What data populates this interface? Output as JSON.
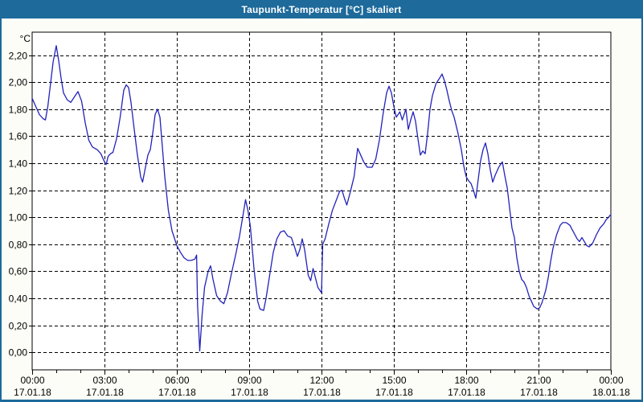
{
  "title": "Taupunkt-Temperatur [°C] skaliert",
  "colors": {
    "titlebar_bg": "#1d6a9b",
    "titlebar_text": "#ffffff",
    "window_bg": "#fdfdf7",
    "plot_bg": "#ffffff",
    "grid": "#000000",
    "axis_text": "#000000",
    "series_line": "#2222bb"
  },
  "chart_data": {
    "type": "line",
    "title": "Taupunkt-Temperatur [°C] skaliert",
    "xlabel": "",
    "ylabel": "",
    "y_unit_label": "°C",
    "grid": "dashed",
    "legend": "none",
    "ylim": [
      -0.13,
      2.37
    ],
    "xlim_hours": [
      0,
      24
    ],
    "x_minor_tick_every_hours": 1,
    "y_ticks": [
      {
        "value": 0.0,
        "label": "0,00"
      },
      {
        "value": 0.2,
        "label": "0,20"
      },
      {
        "value": 0.4,
        "label": "0,40"
      },
      {
        "value": 0.6,
        "label": "0,60"
      },
      {
        "value": 0.8,
        "label": "0,80"
      },
      {
        "value": 1.0,
        "label": "1,00"
      },
      {
        "value": 1.2,
        "label": "1,20"
      },
      {
        "value": 1.4,
        "label": "1,40"
      },
      {
        "value": 1.6,
        "label": "1,60"
      },
      {
        "value": 1.8,
        "label": "1,80"
      },
      {
        "value": 2.0,
        "label": "2,00"
      },
      {
        "value": 2.2,
        "label": "2,20"
      }
    ],
    "x_ticks": [
      {
        "hour": 0,
        "time": "00:00",
        "date": "17.01.18"
      },
      {
        "hour": 3,
        "time": "03:00",
        "date": "17.01.18"
      },
      {
        "hour": 6,
        "time": "06:00",
        "date": "17.01.18"
      },
      {
        "hour": 9,
        "time": "09:00",
        "date": "17.01.18"
      },
      {
        "hour": 12,
        "time": "12:00",
        "date": "17.01.18"
      },
      {
        "hour": 15,
        "time": "15:00",
        "date": "17.01.18"
      },
      {
        "hour": 18,
        "time": "18:00",
        "date": "17.01.18"
      },
      {
        "hour": 21,
        "time": "21:00",
        "date": "17.01.18"
      },
      {
        "hour": 24,
        "time": "00:00",
        "date": "18.01.18"
      }
    ],
    "series": [
      {
        "name": "Taupunkt-Temperatur skaliert",
        "color": "#2222bb",
        "points_hour_value": [
          [
            0.0,
            1.88
          ],
          [
            0.15,
            1.82
          ],
          [
            0.3,
            1.76
          ],
          [
            0.45,
            1.73
          ],
          [
            0.55,
            1.72
          ],
          [
            0.65,
            1.82
          ],
          [
            0.75,
            1.97
          ],
          [
            0.87,
            2.15
          ],
          [
            1.0,
            2.27
          ],
          [
            1.1,
            2.16
          ],
          [
            1.2,
            2.03
          ],
          [
            1.3,
            1.92
          ],
          [
            1.45,
            1.87
          ],
          [
            1.6,
            1.85
          ],
          [
            1.75,
            1.89
          ],
          [
            1.9,
            1.93
          ],
          [
            2.05,
            1.86
          ],
          [
            2.2,
            1.7
          ],
          [
            2.35,
            1.57
          ],
          [
            2.5,
            1.52
          ],
          [
            2.7,
            1.5
          ],
          [
            2.85,
            1.47
          ],
          [
            3.0,
            1.41
          ],
          [
            3.07,
            1.39
          ],
          [
            3.15,
            1.45
          ],
          [
            3.25,
            1.47
          ],
          [
            3.35,
            1.48
          ],
          [
            3.5,
            1.58
          ],
          [
            3.65,
            1.74
          ],
          [
            3.8,
            1.94
          ],
          [
            3.9,
            1.98
          ],
          [
            4.0,
            1.96
          ],
          [
            4.1,
            1.85
          ],
          [
            4.2,
            1.7
          ],
          [
            4.35,
            1.48
          ],
          [
            4.5,
            1.3
          ],
          [
            4.58,
            1.26
          ],
          [
            4.7,
            1.37
          ],
          [
            4.8,
            1.46
          ],
          [
            4.9,
            1.5
          ],
          [
            5.0,
            1.62
          ],
          [
            5.1,
            1.76
          ],
          [
            5.2,
            1.8
          ],
          [
            5.3,
            1.74
          ],
          [
            5.4,
            1.52
          ],
          [
            5.5,
            1.3
          ],
          [
            5.65,
            1.05
          ],
          [
            5.8,
            0.9
          ],
          [
            6.0,
            0.79
          ],
          [
            6.15,
            0.74
          ],
          [
            6.3,
            0.7
          ],
          [
            6.45,
            0.68
          ],
          [
            6.6,
            0.68
          ],
          [
            6.75,
            0.69
          ],
          [
            6.82,
            0.72
          ],
          [
            6.86,
            0.35
          ],
          [
            6.95,
            0.01
          ],
          [
            7.05,
            0.28
          ],
          [
            7.15,
            0.48
          ],
          [
            7.3,
            0.6
          ],
          [
            7.4,
            0.64
          ],
          [
            7.5,
            0.54
          ],
          [
            7.65,
            0.42
          ],
          [
            7.8,
            0.38
          ],
          [
            7.95,
            0.36
          ],
          [
            8.1,
            0.44
          ],
          [
            8.25,
            0.57
          ],
          [
            8.45,
            0.73
          ],
          [
            8.6,
            0.86
          ],
          [
            8.75,
            1.02
          ],
          [
            8.85,
            1.13
          ],
          [
            8.95,
            1.05
          ],
          [
            9.05,
            0.93
          ],
          [
            9.2,
            0.62
          ],
          [
            9.35,
            0.38
          ],
          [
            9.45,
            0.32
          ],
          [
            9.6,
            0.31
          ],
          [
            9.7,
            0.4
          ],
          [
            9.85,
            0.57
          ],
          [
            10.0,
            0.74
          ],
          [
            10.15,
            0.84
          ],
          [
            10.3,
            0.89
          ],
          [
            10.45,
            0.9
          ],
          [
            10.6,
            0.86
          ],
          [
            10.75,
            0.85
          ],
          [
            10.9,
            0.77
          ],
          [
            11.0,
            0.71
          ],
          [
            11.1,
            0.76
          ],
          [
            11.2,
            0.84
          ],
          [
            11.3,
            0.76
          ],
          [
            11.45,
            0.57
          ],
          [
            11.55,
            0.53
          ],
          [
            11.65,
            0.62
          ],
          [
            11.75,
            0.55
          ],
          [
            11.85,
            0.48
          ],
          [
            12.0,
            0.44
          ],
          [
            12.05,
            0.8
          ],
          [
            12.15,
            0.84
          ],
          [
            12.3,
            0.95
          ],
          [
            12.45,
            1.05
          ],
          [
            12.6,
            1.12
          ],
          [
            12.75,
            1.19
          ],
          [
            12.85,
            1.2
          ],
          [
            12.95,
            1.14
          ],
          [
            13.05,
            1.09
          ],
          [
            13.2,
            1.19
          ],
          [
            13.35,
            1.3
          ],
          [
            13.5,
            1.51
          ],
          [
            13.6,
            1.47
          ],
          [
            13.75,
            1.41
          ],
          [
            13.9,
            1.37
          ],
          [
            14.1,
            1.37
          ],
          [
            14.25,
            1.43
          ],
          [
            14.4,
            1.57
          ],
          [
            14.55,
            1.76
          ],
          [
            14.7,
            1.92
          ],
          [
            14.8,
            1.97
          ],
          [
            14.9,
            1.92
          ],
          [
            15.0,
            1.82
          ],
          [
            15.1,
            1.74
          ],
          [
            15.25,
            1.78
          ],
          [
            15.35,
            1.72
          ],
          [
            15.5,
            1.8
          ],
          [
            15.6,
            1.65
          ],
          [
            15.7,
            1.72
          ],
          [
            15.8,
            1.78
          ],
          [
            15.9,
            1.71
          ],
          [
            16.0,
            1.58
          ],
          [
            16.1,
            1.46
          ],
          [
            16.2,
            1.49
          ],
          [
            16.3,
            1.47
          ],
          [
            16.4,
            1.62
          ],
          [
            16.5,
            1.8
          ],
          [
            16.6,
            1.9
          ],
          [
            16.75,
            1.99
          ],
          [
            16.9,
            2.03
          ],
          [
            17.0,
            2.06
          ],
          [
            17.1,
            2.01
          ],
          [
            17.2,
            1.94
          ],
          [
            17.3,
            1.86
          ],
          [
            17.4,
            1.79
          ],
          [
            17.5,
            1.74
          ],
          [
            17.65,
            1.63
          ],
          [
            17.8,
            1.5
          ],
          [
            17.9,
            1.38
          ],
          [
            18.0,
            1.3
          ],
          [
            18.1,
            1.27
          ],
          [
            18.2,
            1.25
          ],
          [
            18.3,
            1.2
          ],
          [
            18.4,
            1.14
          ],
          [
            18.5,
            1.28
          ],
          [
            18.6,
            1.42
          ],
          [
            18.7,
            1.5
          ],
          [
            18.8,
            1.55
          ],
          [
            18.9,
            1.47
          ],
          [
            19.0,
            1.35
          ],
          [
            19.1,
            1.26
          ],
          [
            19.2,
            1.31
          ],
          [
            19.35,
            1.37
          ],
          [
            19.5,
            1.41
          ],
          [
            19.6,
            1.31
          ],
          [
            19.7,
            1.22
          ],
          [
            19.8,
            1.07
          ],
          [
            19.9,
            0.92
          ],
          [
            20.0,
            0.85
          ],
          [
            20.1,
            0.7
          ],
          [
            20.2,
            0.6
          ],
          [
            20.3,
            0.54
          ],
          [
            20.4,
            0.52
          ],
          [
            20.5,
            0.48
          ],
          [
            20.6,
            0.42
          ],
          [
            20.7,
            0.38
          ],
          [
            20.8,
            0.34
          ],
          [
            20.95,
            0.32
          ],
          [
            21.05,
            0.33
          ],
          [
            21.15,
            0.37
          ],
          [
            21.3,
            0.46
          ],
          [
            21.4,
            0.55
          ],
          [
            21.5,
            0.67
          ],
          [
            21.6,
            0.77
          ],
          [
            21.75,
            0.87
          ],
          [
            21.9,
            0.94
          ],
          [
            22.0,
            0.96
          ],
          [
            22.15,
            0.96
          ],
          [
            22.3,
            0.94
          ],
          [
            22.45,
            0.89
          ],
          [
            22.6,
            0.84
          ],
          [
            22.7,
            0.82
          ],
          [
            22.8,
            0.85
          ],
          [
            22.9,
            0.82
          ],
          [
            23.0,
            0.79
          ],
          [
            23.1,
            0.78
          ],
          [
            23.25,
            0.81
          ],
          [
            23.4,
            0.87
          ],
          [
            23.55,
            0.92
          ],
          [
            23.7,
            0.95
          ],
          [
            23.8,
            0.98
          ],
          [
            23.9,
            1.0
          ],
          [
            24.0,
            1.02
          ]
        ]
      }
    ]
  }
}
